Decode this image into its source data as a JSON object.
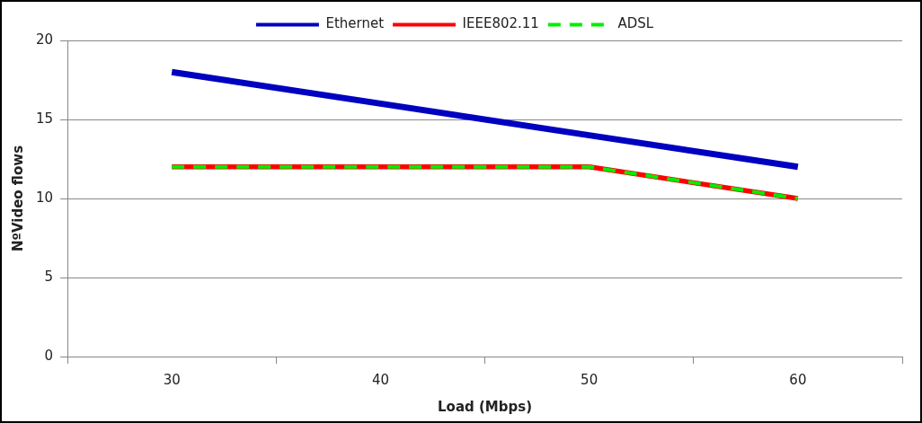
{
  "chart_data": {
    "type": "line",
    "xlabel": "Load (Mbps)",
    "ylabel": "NºVideo flows",
    "categories": [
      "30",
      "40",
      "50",
      "60"
    ],
    "series": [
      {
        "name": "Ethernet",
        "color": "#0000c0",
        "values": [
          18,
          16,
          14,
          12
        ],
        "line_style": "solid"
      },
      {
        "name": "IEEE802.11",
        "color": "#ff0000",
        "values": [
          12,
          12,
          12,
          10
        ],
        "line_style": "solid"
      },
      {
        "name": "ADSL",
        "color": "#00ee00",
        "values": [
          12,
          12,
          12,
          10
        ],
        "line_style": "dashed"
      }
    ],
    "ylim": [
      0,
      20
    ],
    "yticks": [
      0,
      5,
      10,
      15,
      20
    ],
    "grid": "y",
    "legend": "top",
    "marker": "none"
  }
}
